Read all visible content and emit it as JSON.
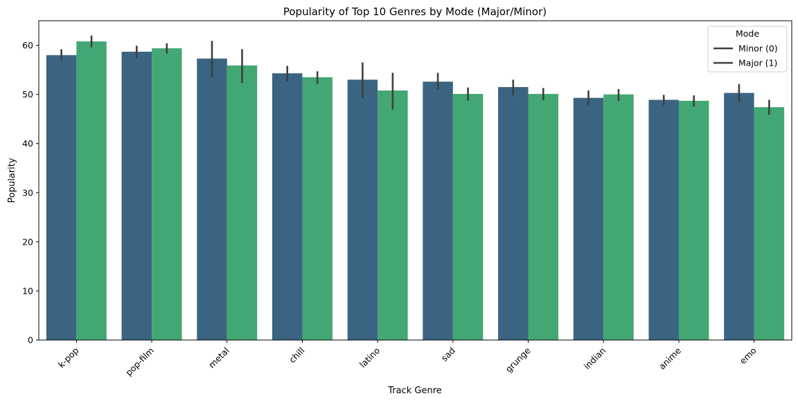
{
  "chart_data": {
    "type": "bar",
    "title": "Popularity of Top 10 Genres by Mode (Major/Minor)",
    "xlabel": "Track Genre",
    "ylabel": "Popularity",
    "ylim": [
      0,
      65
    ],
    "yticks": [
      0,
      10,
      20,
      30,
      40,
      50,
      60
    ],
    "grid": false,
    "legend": {
      "title": "Mode",
      "placement": "top-right"
    },
    "categories": [
      "k-pop",
      "pop-film",
      "metal",
      "chill",
      "latino",
      "sad",
      "grunge",
      "indian",
      "anime",
      "emo"
    ],
    "series": [
      {
        "name": "Minor (0)",
        "color": "#3b6482",
        "values": [
          58.0,
          58.7,
          57.3,
          54.3,
          53.0,
          52.6,
          51.5,
          49.3,
          48.9,
          50.3
        ],
        "error_low": [
          56.9,
          57.4,
          53.5,
          52.7,
          49.3,
          51.0,
          49.8,
          47.7,
          47.8,
          48.4
        ],
        "error_high": [
          59.2,
          59.9,
          60.9,
          55.8,
          56.5,
          54.4,
          53.0,
          50.8,
          49.9,
          52.1
        ]
      },
      {
        "name": "Major (1)",
        "color": "#43a773",
        "values": [
          60.8,
          59.4,
          55.9,
          53.5,
          50.8,
          50.1,
          50.1,
          50.0,
          48.7,
          47.4
        ],
        "error_low": [
          59.6,
          58.3,
          52.3,
          52.1,
          46.9,
          48.7,
          48.8,
          48.7,
          47.5,
          45.9
        ],
        "error_high": [
          62.0,
          60.4,
          59.2,
          54.7,
          54.4,
          51.4,
          51.3,
          51.1,
          49.8,
          48.9
        ]
      }
    ],
    "errorbar_color": "#3f3f3f"
  }
}
